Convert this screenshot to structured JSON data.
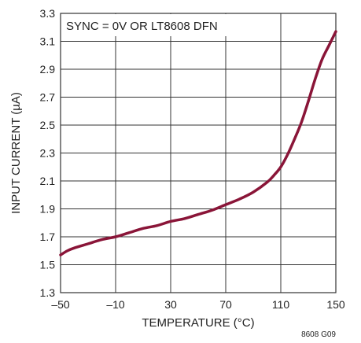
{
  "chart_data": {
    "type": "line",
    "title": "",
    "xlabel": "TEMPERATURE (°C)",
    "ylabel": "INPUT CURRENT (µA)",
    "xlim": [
      -50,
      150
    ],
    "ylim": [
      1.3,
      3.3
    ],
    "x_ticks": [
      "–50",
      "–10",
      "30",
      "70",
      "110",
      "150"
    ],
    "y_ticks": [
      "1.3",
      "1.5",
      "1.7",
      "1.9",
      "2.1",
      "2.3",
      "2.5",
      "2.7",
      "2.9",
      "3.1",
      "3.3"
    ],
    "grid": true,
    "annotation": "SYNC = 0V OR LT8608 DFN",
    "figure_id": "8608 G09",
    "line_color": "#8a1538",
    "series": [
      {
        "x": [
          -50,
          -45,
          -40,
          -30,
          -20,
          -10,
          0,
          10,
          20,
          30,
          40,
          50,
          60,
          70,
          80,
          90,
          100,
          105,
          110,
          115,
          120,
          125,
          130,
          135,
          140,
          145,
          150
        ],
        "values": [
          1.57,
          1.6,
          1.62,
          1.65,
          1.68,
          1.7,
          1.73,
          1.76,
          1.78,
          1.81,
          1.83,
          1.86,
          1.89,
          1.93,
          1.97,
          2.02,
          2.09,
          2.14,
          2.2,
          2.29,
          2.4,
          2.52,
          2.67,
          2.83,
          2.97,
          3.07,
          3.17
        ]
      }
    ]
  }
}
